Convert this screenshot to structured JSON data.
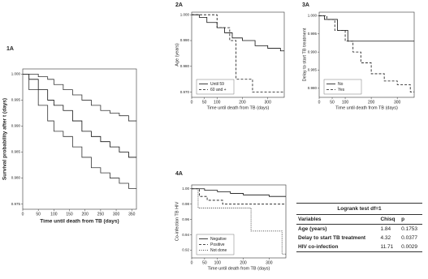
{
  "chart_data": [
    {
      "type": "line",
      "step": true,
      "title": "1A",
      "xlabel": "Time until death from TB (days)",
      "ylabel": "Survival probability after t (days)",
      "xlim": [
        0,
        365
      ],
      "ylim": [
        0.974,
        1.001
      ],
      "xticks": [
        0,
        50,
        100,
        150,
        200,
        250,
        300,
        350
      ],
      "yticks": [
        {
          "value": 0.975,
          "label": "0.975"
        },
        {
          "value": 0.98,
          "label": "0.980"
        },
        {
          "value": 0.985,
          "label": "0.985"
        },
        {
          "value": 0.99,
          "label": "0.990"
        },
        {
          "value": 0.995,
          "label": "0.995"
        },
        {
          "value": 1,
          "label": "1.000"
        }
      ],
      "series": [
        {
          "color": "#333333",
          "dash": "none",
          "x": [
            0,
            20,
            50,
            80,
            100,
            130,
            160,
            190,
            220,
            250,
            280,
            310,
            340,
            365
          ],
          "values": [
            1,
            1,
            0.9995,
            0.999,
            0.998,
            0.997,
            0.996,
            0.995,
            0.994,
            0.993,
            0.9925,
            0.992,
            0.991,
            0.991
          ]
        },
        {
          "color": "#111111",
          "dash": "none",
          "x": [
            0,
            20,
            50,
            80,
            100,
            130,
            160,
            190,
            220,
            250,
            280,
            310,
            340,
            365
          ],
          "values": [
            1,
            0.999,
            0.997,
            0.995,
            0.994,
            0.993,
            0.991,
            0.989,
            0.988,
            0.987,
            0.986,
            0.985,
            0.984,
            0.984
          ]
        },
        {
          "color": "#333333",
          "dash": "none",
          "x": [
            0,
            20,
            50,
            80,
            100,
            130,
            160,
            190,
            220,
            250,
            280,
            310,
            340,
            365
          ],
          "values": [
            1,
            0.997,
            0.994,
            0.991,
            0.989,
            0.988,
            0.986,
            0.984,
            0.982,
            0.981,
            0.98,
            0.979,
            0.978,
            0.978
          ]
        }
      ]
    },
    {
      "type": "line",
      "step": true,
      "title": "2A",
      "xlabel": "Time until death from TB (days)",
      "ylabel": "Age (years)",
      "legend": "lower left",
      "xlim": [
        0,
        365
      ],
      "ylim": [
        0.968,
        1.001
      ],
      "xticks": [
        0,
        50,
        100,
        200,
        300
      ],
      "yticks": [
        {
          "value": 0.97,
          "label": "0.970"
        },
        {
          "value": 0.98,
          "label": "0.980"
        },
        {
          "value": 0.99,
          "label": "0.990"
        },
        {
          "value": 1,
          "label": "1.000"
        }
      ],
      "series": [
        {
          "name": "Until 59",
          "color": "#111111",
          "dash": "none",
          "x": [
            0,
            30,
            60,
            100,
            130,
            160,
            200,
            250,
            300,
            350,
            365
          ],
          "values": [
            1,
            0.999,
            0.997,
            0.995,
            0.993,
            0.991,
            0.99,
            0.988,
            0.987,
            0.986,
            0.986
          ]
        },
        {
          "name": "60 and +",
          "color": "#111111",
          "dash": "3,2",
          "x": [
            0,
            100,
            150,
            175,
            240,
            365
          ],
          "values": [
            1,
            0.995,
            0.99,
            0.975,
            0.97,
            0.97
          ]
        }
      ]
    },
    {
      "type": "line",
      "step": true,
      "title": "3A",
      "xlabel": "Time until death from TB (days)",
      "ylabel": "Delay to start TB treatment",
      "legend": "lower left",
      "xlim": [
        0,
        365
      ],
      "ylim": [
        0.9775,
        1.001
      ],
      "xticks": [
        0,
        50,
        100,
        200,
        300
      ],
      "yticks": [
        {
          "value": 0.98,
          "label": "0.980"
        },
        {
          "value": 0.985,
          "label": "0.985"
        },
        {
          "value": 0.99,
          "label": "0.990"
        },
        {
          "value": 0.995,
          "label": "0.995"
        },
        {
          "value": 1,
          "label": "1.000"
        }
      ],
      "series": [
        {
          "name": "No",
          "color": "#111111",
          "dash": "none",
          "x": [
            0,
            20,
            70,
            110,
            365
          ],
          "values": [
            1,
            0.999,
            0.996,
            0.993,
            0.993
          ]
        },
        {
          "name": "Yes",
          "color": "#111111",
          "dash": "3,2",
          "x": [
            0,
            30,
            60,
            100,
            130,
            160,
            200,
            250,
            300,
            350,
            365
          ],
          "values": [
            1,
            0.999,
            0.996,
            0.993,
            0.99,
            0.987,
            0.984,
            0.982,
            0.981,
            0.979,
            0.979
          ]
        }
      ]
    },
    {
      "type": "line",
      "step": true,
      "title": "4A",
      "xlabel": "Time until death from TB (days)",
      "ylabel": "Co-infection TB HIV",
      "legend": "lower left",
      "xlim": [
        0,
        365
      ],
      "ylim": [
        0.91,
        1.005
      ],
      "xticks": [
        0,
        50,
        100,
        200,
        300
      ],
      "yticks": [
        {
          "value": 0.92,
          "label": "0.92"
        },
        {
          "value": 0.94,
          "label": "0.94"
        },
        {
          "value": 0.96,
          "label": "0.96"
        },
        {
          "value": 0.98,
          "label": "0.98"
        },
        {
          "value": 1,
          "label": "1.00"
        }
      ],
      "series": [
        {
          "name": "Negative",
          "color": "#111111",
          "dash": "none",
          "x": [
            0,
            50,
            100,
            150,
            200,
            300,
            365
          ],
          "values": [
            1,
            0.998,
            0.996,
            0.994,
            0.992,
            0.99,
            0.99
          ]
        },
        {
          "name": "Positive",
          "color": "#111111",
          "dash": "3,2",
          "x": [
            0,
            30,
            60,
            120,
            365
          ],
          "values": [
            1,
            0.99,
            0.985,
            0.98,
            0.98
          ]
        },
        {
          "name": "Not done",
          "color": "#111111",
          "dash": "1,1.5",
          "x": [
            0,
            25,
            230,
            350,
            365
          ],
          "values": [
            1,
            0.975,
            0.945,
            0.915,
            0.915
          ]
        }
      ]
    }
  ],
  "table": {
    "title": "Logrank test df=1",
    "columns": [
      "Variables",
      "Chisq",
      "p"
    ],
    "rows": [
      [
        "Age (years)",
        "1.84",
        "0.1753"
      ],
      [
        "Delay to start TB treatment",
        "4.32",
        "0.0377"
      ],
      [
        "HIV  co-infection",
        "11.71",
        "0.0029"
      ]
    ]
  }
}
